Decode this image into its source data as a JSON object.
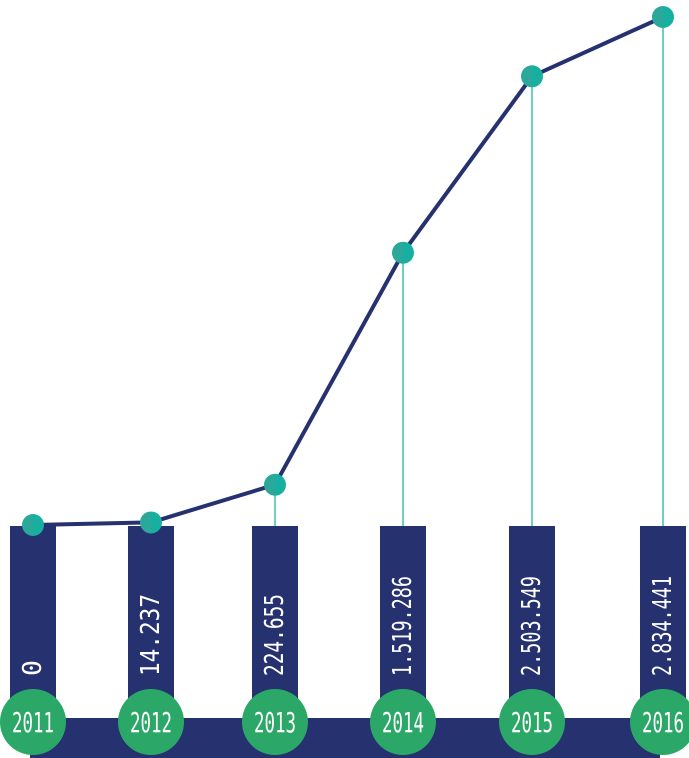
{
  "colors": {
    "bar": "#263170",
    "line": "#263170",
    "stem": "#3cc4aa",
    "point_left": "#2ba89a",
    "point_right": "#17b0a0",
    "year_circle": "#2ba868",
    "text": "#ffffff",
    "background": "#ffffff"
  },
  "chart_data": {
    "type": "line",
    "title": "",
    "xlabel": "",
    "ylabel": "",
    "categories": [
      "2011",
      "2012",
      "2013",
      "2014",
      "2015",
      "2016"
    ],
    "series": [
      {
        "values": [
          0,
          14237,
          224655,
          1519286,
          2503549,
          2834441
        ]
      }
    ],
    "value_labels": [
      "0",
      "14.237",
      "224.655",
      "1.519.286",
      "2.503.549",
      "2.834.441"
    ],
    "y_axis_shown": false,
    "grid": false,
    "legend": "none"
  }
}
